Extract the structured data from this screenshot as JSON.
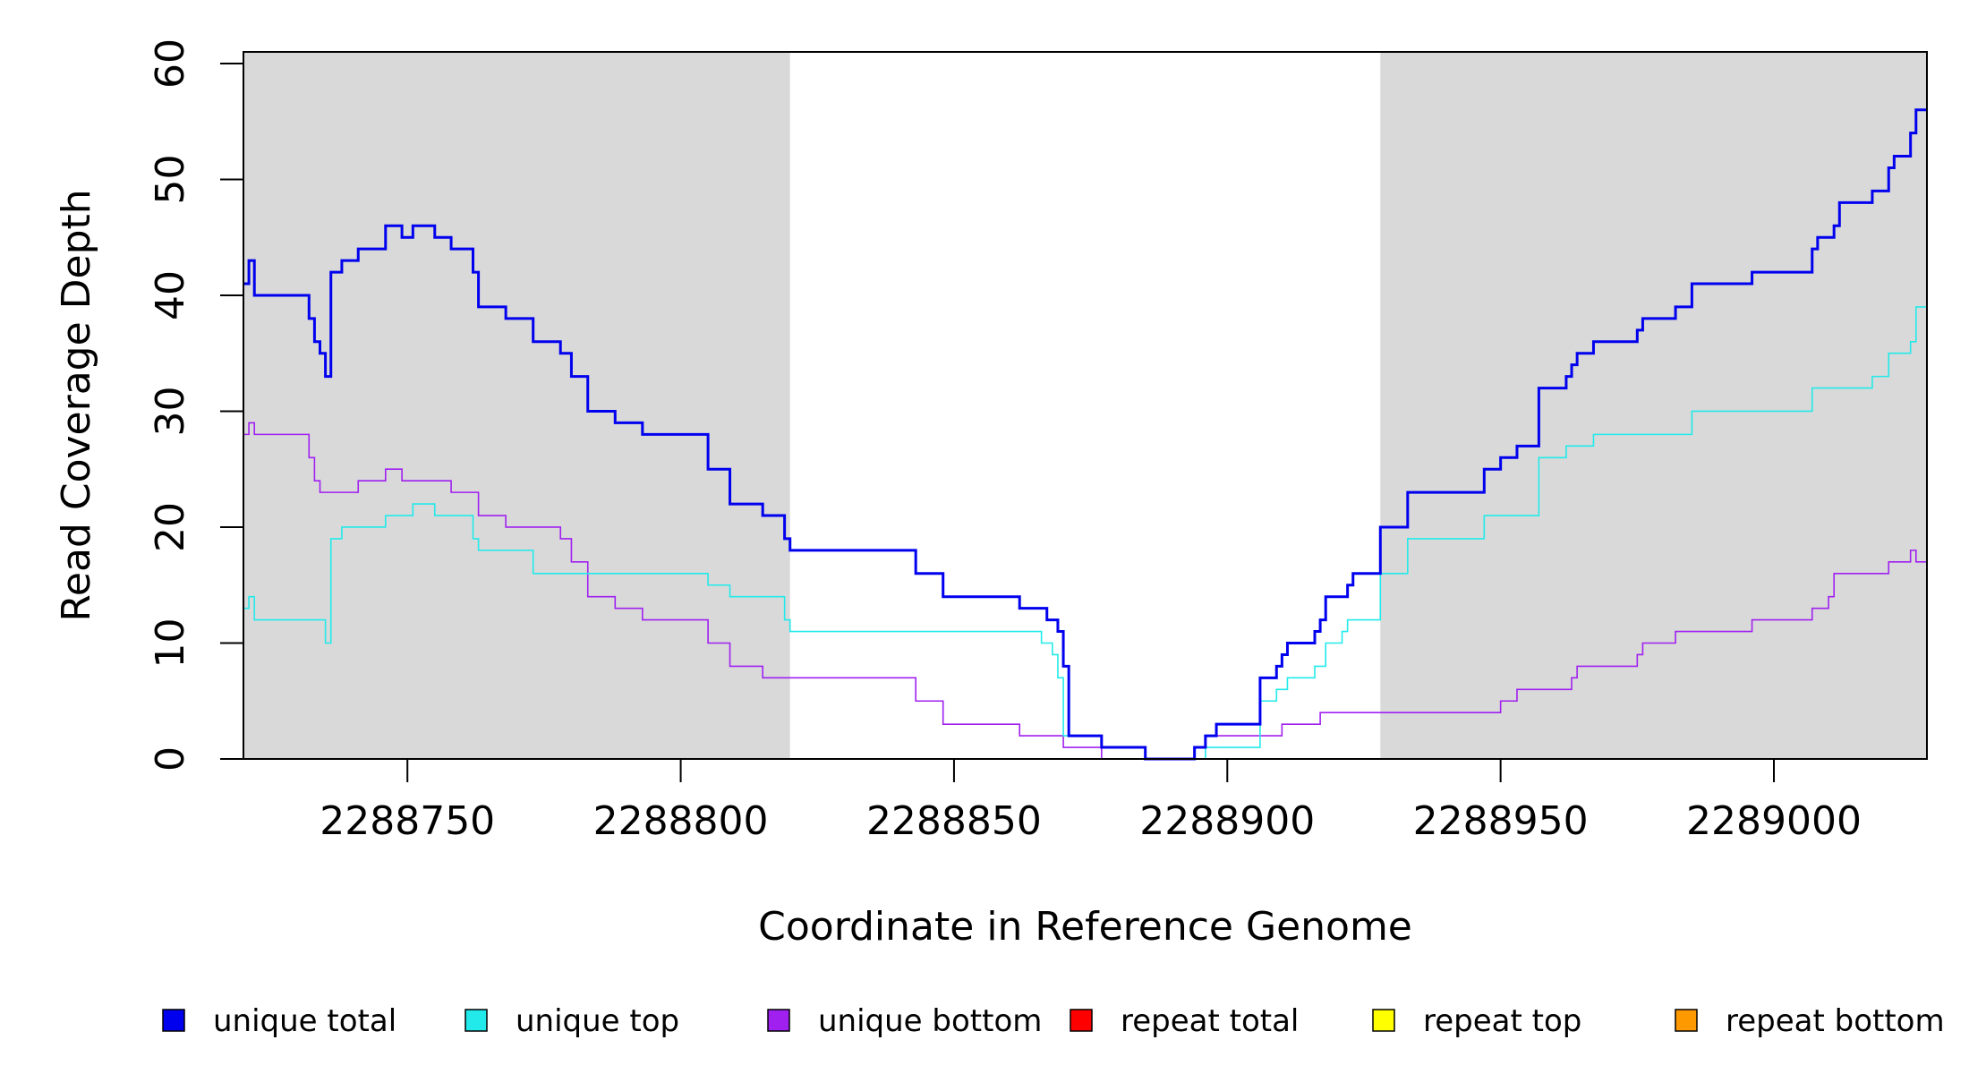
{
  "chart_data": {
    "type": "line",
    "title": "",
    "xlabel": "Coordinate in Reference Genome",
    "ylabel": "Read Coverage Depth",
    "xlim": [
      2288720,
      2289028
    ],
    "ylim": [
      0,
      61
    ],
    "x_ticks": [
      2288750,
      2288800,
      2288850,
      2288900,
      2288950,
      2289000
    ],
    "x_tick_labels": [
      "2288750",
      "2288800",
      "2288850",
      "2288900",
      "2288950",
      "2289000"
    ],
    "y_ticks": [
      0,
      10,
      20,
      30,
      40,
      50,
      60
    ],
    "y_tick_labels": [
      "0",
      "10",
      "20",
      "30",
      "40",
      "50",
      "60"
    ],
    "grid": false,
    "shaded_regions": [
      [
        2288720,
        2288820
      ],
      [
        2288928,
        2289028
      ]
    ],
    "shade_color": "#d9d9d9",
    "legend_position": "bottom",
    "series": [
      {
        "name": "unique total",
        "color": "#0000ee",
        "points": [
          [
            2288720,
            41
          ],
          [
            2288721,
            43
          ],
          [
            2288722,
            40
          ],
          [
            2288732,
            38
          ],
          [
            2288733,
            36
          ],
          [
            2288734,
            35
          ],
          [
            2288735,
            33
          ],
          [
            2288736,
            42
          ],
          [
            2288738,
            43
          ],
          [
            2288741,
            44
          ],
          [
            2288746,
            46
          ],
          [
            2288749,
            45
          ],
          [
            2288751,
            46
          ],
          [
            2288755,
            45
          ],
          [
            2288758,
            44
          ],
          [
            2288762,
            42
          ],
          [
            2288763,
            39
          ],
          [
            2288768,
            38
          ],
          [
            2288773,
            36
          ],
          [
            2288778,
            35
          ],
          [
            2288780,
            33
          ],
          [
            2288783,
            30
          ],
          [
            2288788,
            29
          ],
          [
            2288793,
            28
          ],
          [
            2288805,
            25
          ],
          [
            2288809,
            22
          ],
          [
            2288815,
            21
          ],
          [
            2288819,
            19
          ],
          [
            2288820,
            18
          ],
          [
            2288843,
            16
          ],
          [
            2288848,
            14
          ],
          [
            2288862,
            13
          ],
          [
            2288867,
            12
          ],
          [
            2288869,
            11
          ],
          [
            2288870,
            8
          ],
          [
            2288871,
            2
          ],
          [
            2288877,
            1
          ],
          [
            2288885,
            0
          ],
          [
            2288894,
            1
          ],
          [
            2288896,
            2
          ],
          [
            2288898,
            3
          ],
          [
            2288906,
            7
          ],
          [
            2288909,
            8
          ],
          [
            2288910,
            9
          ],
          [
            2288911,
            10
          ],
          [
            2288916,
            11
          ],
          [
            2288917,
            12
          ],
          [
            2288918,
            14
          ],
          [
            2288922,
            15
          ],
          [
            2288923,
            16
          ],
          [
            2288928,
            20
          ],
          [
            2288933,
            23
          ],
          [
            2288947,
            25
          ],
          [
            2288950,
            26
          ],
          [
            2288953,
            27
          ],
          [
            2288957,
            32
          ],
          [
            2288962,
            33
          ],
          [
            2288963,
            34
          ],
          [
            2288964,
            35
          ],
          [
            2288967,
            36
          ],
          [
            2288975,
            37
          ],
          [
            2288976,
            38
          ],
          [
            2288982,
            39
          ],
          [
            2288985,
            41
          ],
          [
            2288996,
            42
          ],
          [
            2289007,
            44
          ],
          [
            2289008,
            45
          ],
          [
            2289011,
            46
          ],
          [
            2289012,
            48
          ],
          [
            2289018,
            49
          ],
          [
            2289021,
            51
          ],
          [
            2289022,
            52
          ],
          [
            2289025,
            54
          ],
          [
            2289026,
            56
          ],
          [
            2289028,
            56
          ]
        ]
      },
      {
        "name": "unique top",
        "color": "#22eaea",
        "points": [
          [
            2288720,
            13
          ],
          [
            2288721,
            14
          ],
          [
            2288722,
            12
          ],
          [
            2288735,
            10
          ],
          [
            2288736,
            19
          ],
          [
            2288738,
            20
          ],
          [
            2288746,
            21
          ],
          [
            2288751,
            22
          ],
          [
            2288755,
            21
          ],
          [
            2288762,
            19
          ],
          [
            2288763,
            18
          ],
          [
            2288773,
            16
          ],
          [
            2288805,
            15
          ],
          [
            2288809,
            14
          ],
          [
            2288819,
            12
          ],
          [
            2288820,
            11
          ],
          [
            2288866,
            10
          ],
          [
            2288868,
            9
          ],
          [
            2288869,
            7
          ],
          [
            2288870,
            2
          ],
          [
            2288877,
            1
          ],
          [
            2288885,
            0
          ],
          [
            2288894,
            0
          ],
          [
            2288896,
            1
          ],
          [
            2288906,
            5
          ],
          [
            2288909,
            6
          ],
          [
            2288911,
            7
          ],
          [
            2288916,
            8
          ],
          [
            2288918,
            10
          ],
          [
            2288921,
            11
          ],
          [
            2288922,
            12
          ],
          [
            2288928,
            16
          ],
          [
            2288933,
            19
          ],
          [
            2288947,
            21
          ],
          [
            2288957,
            26
          ],
          [
            2288962,
            27
          ],
          [
            2288967,
            28
          ],
          [
            2288985,
            30
          ],
          [
            2289007,
            32
          ],
          [
            2289018,
            33
          ],
          [
            2289021,
            35
          ],
          [
            2289025,
            36
          ],
          [
            2289026,
            39
          ],
          [
            2289028,
            39
          ]
        ]
      },
      {
        "name": "unique bottom",
        "color": "#a020f0",
        "points": [
          [
            2288720,
            28
          ],
          [
            2288721,
            29
          ],
          [
            2288722,
            28
          ],
          [
            2288732,
            26
          ],
          [
            2288733,
            24
          ],
          [
            2288734,
            23
          ],
          [
            2288741,
            24
          ],
          [
            2288746,
            25
          ],
          [
            2288749,
            24
          ],
          [
            2288758,
            23
          ],
          [
            2288763,
            21
          ],
          [
            2288768,
            20
          ],
          [
            2288778,
            19
          ],
          [
            2288780,
            17
          ],
          [
            2288783,
            14
          ],
          [
            2288788,
            13
          ],
          [
            2288793,
            12
          ],
          [
            2288805,
            10
          ],
          [
            2288809,
            8
          ],
          [
            2288815,
            7
          ],
          [
            2288843,
            5
          ],
          [
            2288848,
            3
          ],
          [
            2288862,
            2
          ],
          [
            2288870,
            1
          ],
          [
            2288877,
            0
          ],
          [
            2288894,
            1
          ],
          [
            2288896,
            2
          ],
          [
            2288910,
            3
          ],
          [
            2288917,
            4
          ],
          [
            2288950,
            5
          ],
          [
            2288953,
            6
          ],
          [
            2288963,
            7
          ],
          [
            2288964,
            8
          ],
          [
            2288975,
            9
          ],
          [
            2288976,
            10
          ],
          [
            2288982,
            11
          ],
          [
            2288996,
            12
          ],
          [
            2289007,
            13
          ],
          [
            2289010,
            14
          ],
          [
            2289011,
            16
          ],
          [
            2289021,
            17
          ],
          [
            2289025,
            18
          ],
          [
            2289026,
            17
          ],
          [
            2289028,
            17
          ]
        ]
      },
      {
        "name": "repeat total",
        "color": "#ff0000",
        "points": [
          [
            2288720,
            0
          ],
          [
            2289028,
            0
          ]
        ]
      },
      {
        "name": "repeat top",
        "color": "#ffff00",
        "points": [
          [
            2288720,
            0
          ],
          [
            2289028,
            0
          ]
        ]
      },
      {
        "name": "repeat bottom",
        "color": "#ff9900",
        "points": [
          [
            2288720,
            0
          ],
          [
            2289028,
            0
          ]
        ]
      }
    ]
  }
}
